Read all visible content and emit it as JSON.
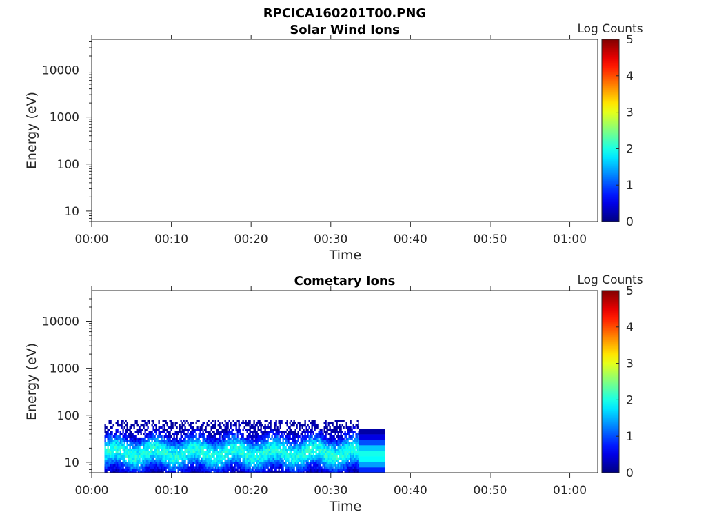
{
  "figure_title": "RPCICA160201T00.PNG",
  "chart_data": [
    {
      "type": "heatmap",
      "title": "Solar Wind Ions",
      "xlabel": "Time",
      "ylabel": "Energy (eV)",
      "x_ticks": [
        "00:00",
        "00:10",
        "00:20",
        "00:30",
        "00:40",
        "00:50",
        "01:00"
      ],
      "y_ticks": [
        "10",
        "100",
        "1000",
        "10000"
      ],
      "y_scale": "log",
      "xlim_minutes": [
        0,
        63.5
      ],
      "ylim": [
        6,
        45000
      ],
      "colorbar": {
        "label": "Log Counts",
        "ticks": [
          "0",
          "1",
          "2",
          "3",
          "4",
          "5"
        ],
        "range": [
          0,
          5
        ],
        "colormap": "jet"
      },
      "data": {
        "present": false
      }
    },
    {
      "type": "heatmap",
      "title": "Cometary Ions",
      "xlabel": "Time",
      "ylabel": "Energy (eV)",
      "x_ticks": [
        "00:00",
        "00:10",
        "00:20",
        "00:30",
        "00:40",
        "00:50",
        "01:00"
      ],
      "y_ticks": [
        "10",
        "100",
        "1000",
        "10000"
      ],
      "y_scale": "log",
      "xlim_minutes": [
        0,
        63.5
      ],
      "ylim": [
        6,
        45000
      ],
      "colorbar": {
        "label": "Log Counts",
        "ticks": [
          "0",
          "1",
          "2",
          "3",
          "4",
          "5"
        ],
        "range": [
          0,
          5
        ],
        "colormap": "jet"
      },
      "data": {
        "present": true,
        "segments": [
          {
            "t_start_min": 1.6,
            "t_end_min": 33.5,
            "e_min_eV": 6,
            "e_max_eV": 80,
            "log_counts_range": [
              0,
              2
            ],
            "peak_energy_eV": [
              10,
              25
            ],
            "resolution": "fine"
          },
          {
            "t_start_min": 33.5,
            "t_end_min": 36.8,
            "e_min_eV": 6,
            "e_max_eV": 52,
            "log_counts_range": [
              0,
              2
            ],
            "peak_energy_eV": [
              10,
              20
            ],
            "resolution": "coarse"
          }
        ]
      }
    }
  ]
}
